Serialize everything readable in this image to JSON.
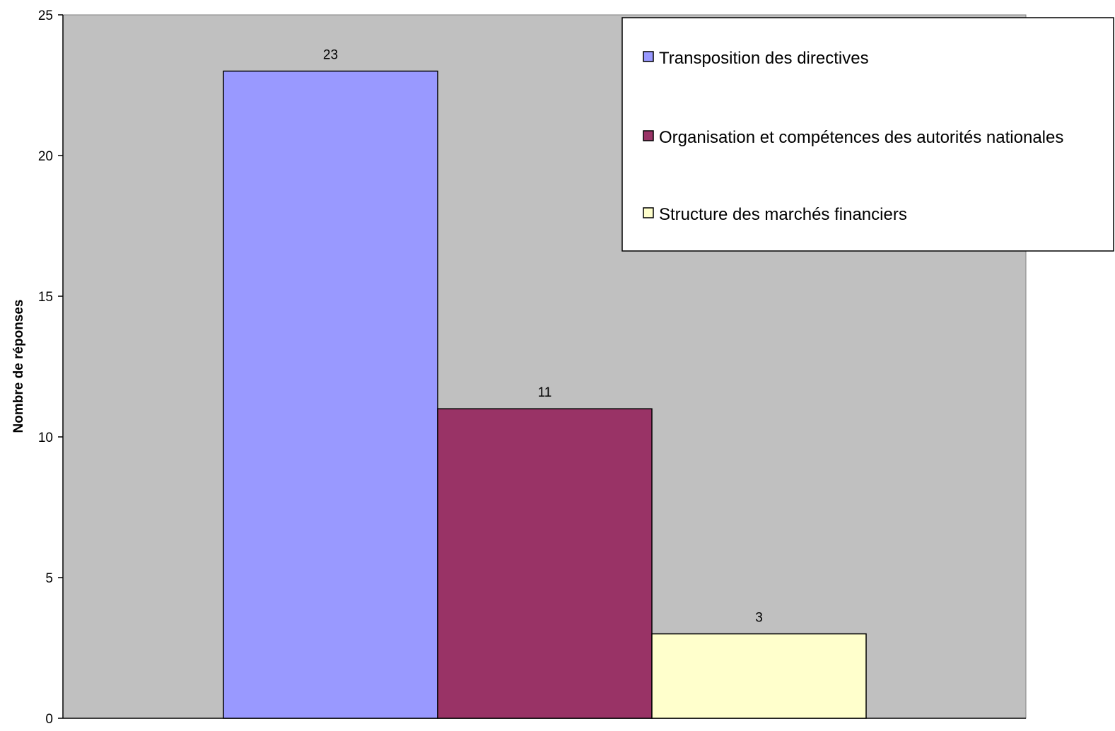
{
  "chart_data": {
    "type": "bar",
    "title": "",
    "xlabel": "",
    "ylabel": "Nombre de réponses",
    "ylim": [
      0,
      25
    ],
    "yticks": [
      0,
      5,
      10,
      15,
      20,
      25
    ],
    "grid": false,
    "plot_background": "#c0c0c0",
    "legend_position": "top-right",
    "series": [
      {
        "name": "Transposition des directives",
        "value": 23,
        "color": "#9999ff"
      },
      {
        "name": "Organisation et compétences des autorités nationales",
        "value": 11,
        "color": "#993366"
      },
      {
        "name": "Structure des marchés financiers",
        "value": 3,
        "color": "#ffffcc"
      }
    ]
  }
}
